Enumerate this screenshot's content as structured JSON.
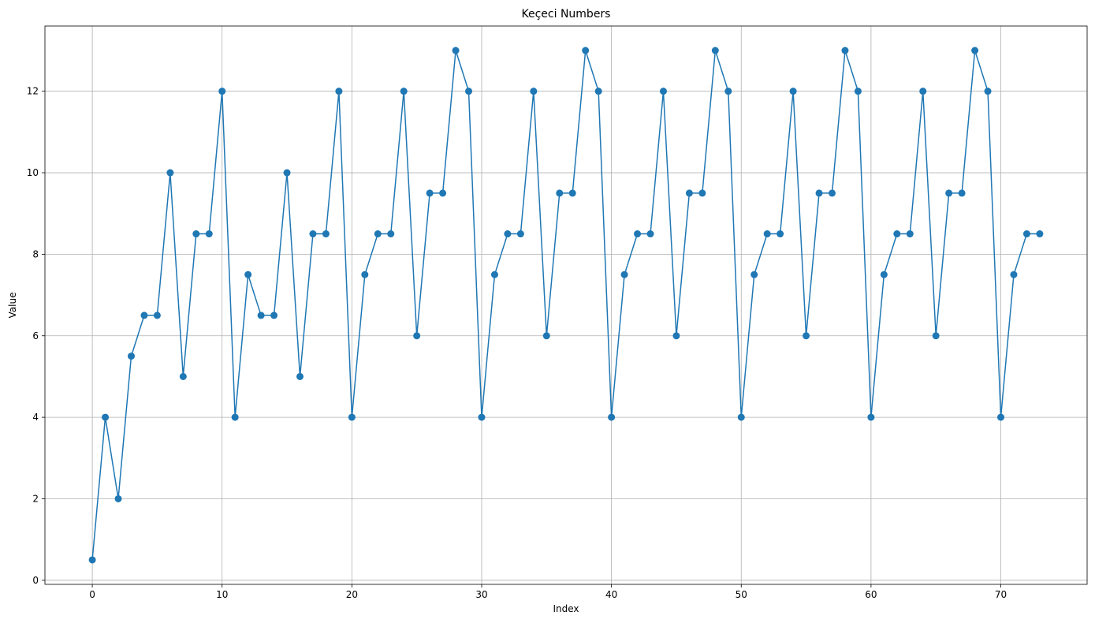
{
  "chart_data": {
    "type": "line",
    "title": "Keçeci Numbers",
    "xlabel": "Index",
    "ylabel": "Value",
    "xlim": [
      -3.65,
      76.65
    ],
    "ylim": [
      -0.1,
      13.6
    ],
    "xticks": [
      0,
      10,
      20,
      30,
      40,
      50,
      60,
      70
    ],
    "yticks": [
      0,
      2,
      4,
      6,
      8,
      10,
      12
    ],
    "grid": true,
    "marker": "circle",
    "color": "#1f77b4",
    "x": [
      0,
      1,
      2,
      3,
      4,
      5,
      6,
      7,
      8,
      9,
      10,
      11,
      12,
      13,
      14,
      15,
      16,
      17,
      18,
      19,
      20,
      21,
      22,
      23,
      24,
      25,
      26,
      27,
      28,
      29,
      30,
      31,
      32,
      33,
      34,
      35,
      36,
      37,
      38,
      39,
      40,
      41,
      42,
      43,
      44,
      45,
      46,
      47,
      48,
      49,
      50,
      51,
      52,
      53,
      54,
      55,
      56,
      57,
      58,
      59,
      60,
      61,
      62,
      63,
      64,
      65,
      66,
      67,
      68,
      69,
      70,
      71,
      72,
      73
    ],
    "values": [
      0.5,
      4,
      2,
      5.5,
      6.5,
      6.5,
      10,
      5,
      8.5,
      8.5,
      12,
      4,
      7.5,
      6.5,
      6.5,
      10,
      5,
      8.5,
      8.5,
      12,
      4,
      7.5,
      8.5,
      8.5,
      12,
      6,
      9.5,
      9.5,
      13,
      12,
      4,
      7.5,
      8.5,
      8.5,
      12,
      6,
      9.5,
      9.5,
      13,
      12,
      4,
      7.5,
      8.5,
      8.5,
      12,
      6,
      9.5,
      9.5,
      13,
      12,
      4,
      7.5,
      8.5,
      8.5,
      12,
      6,
      9.5,
      9.5,
      13,
      12,
      4,
      7.5,
      8.5,
      8.5,
      12,
      6,
      9.5,
      9.5,
      13,
      12,
      4,
      7.5,
      8.5,
      8.5
    ]
  }
}
